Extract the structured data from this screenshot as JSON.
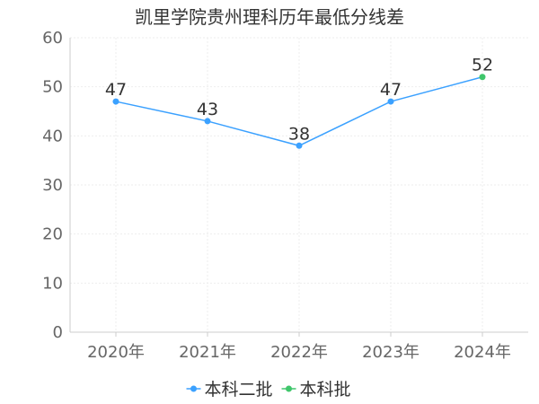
{
  "chart_data": {
    "type": "line",
    "title": "凯里学院贵州理科历年最低分线差",
    "xlabel": "",
    "ylabel": "",
    "categories": [
      "2020年",
      "2021年",
      "2022年",
      "2023年",
      "2024年"
    ],
    "ylim": [
      0,
      60
    ],
    "yticks": [
      0,
      10,
      20,
      30,
      40,
      50,
      60
    ],
    "grid": true,
    "legend_position": "bottom",
    "series": [
      {
        "name": "本科二批",
        "color": "#3ba1ff",
        "values": [
          47,
          43,
          38,
          47,
          null
        ]
      },
      {
        "name": "本科批",
        "color": "#3fc66b",
        "values": [
          null,
          null,
          null,
          null,
          52
        ]
      }
    ],
    "data_labels": [
      "47",
      "43",
      "38",
      "47",
      "52"
    ]
  }
}
